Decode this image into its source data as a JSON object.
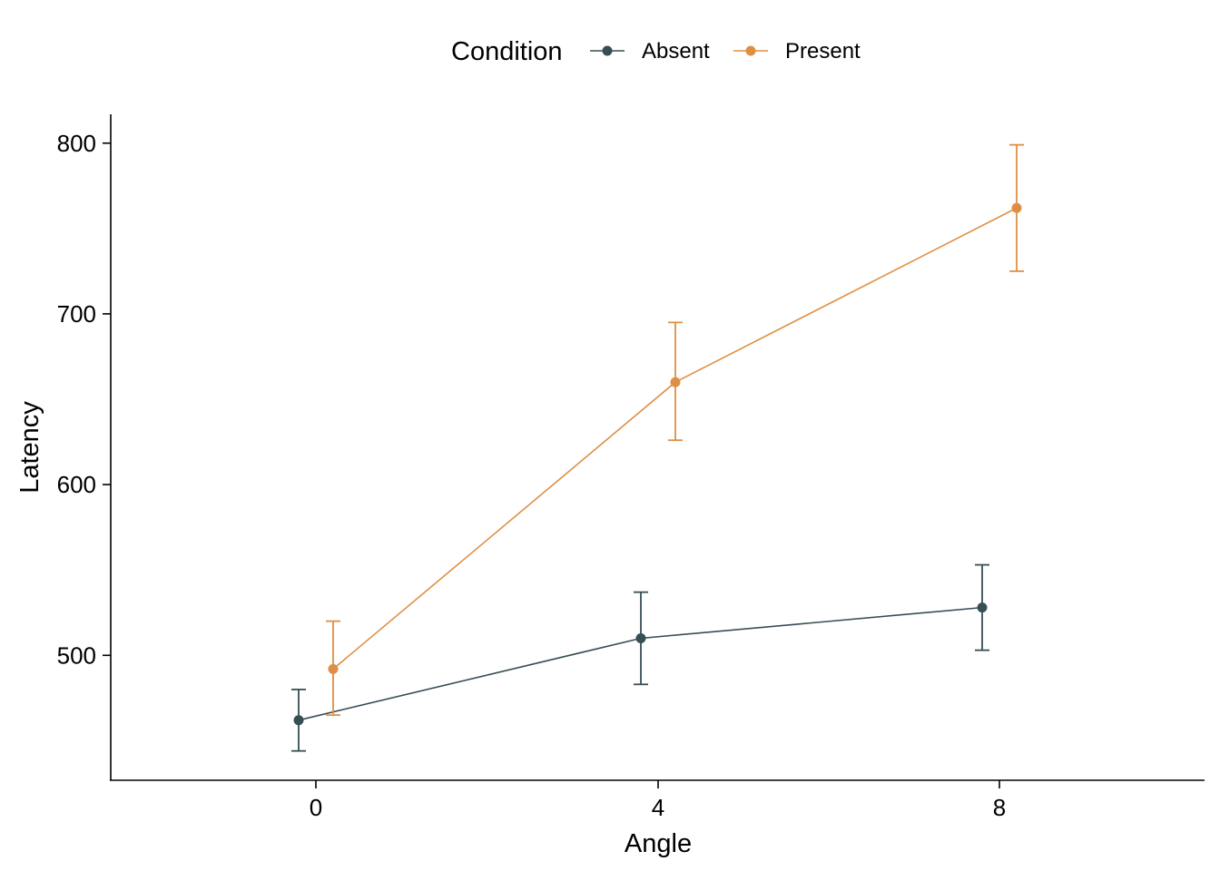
{
  "chart_data": {
    "type": "line",
    "title": "",
    "xlabel": "Angle",
    "ylabel": "Latency",
    "legend": {
      "title": "Condition",
      "position": "top"
    },
    "categories": [
      "0",
      "4",
      "8"
    ],
    "x_ticks": [
      "0",
      "4",
      "8"
    ],
    "y_ticks": [
      "500",
      "600",
      "700",
      "800"
    ],
    "ylim": [
      427,
      817
    ],
    "error_bars": true,
    "grid": false,
    "series": [
      {
        "name": "Absent",
        "color": "#374E55",
        "values": [
          462,
          510,
          528
        ],
        "error_low": [
          444,
          483,
          503
        ],
        "error_high": [
          480,
          537,
          553
        ]
      },
      {
        "name": "Present",
        "color": "#DF8F44",
        "values": [
          492,
          660,
          762
        ],
        "error_low": [
          465,
          626,
          725
        ],
        "error_high": [
          520,
          695,
          799
        ]
      }
    ]
  }
}
